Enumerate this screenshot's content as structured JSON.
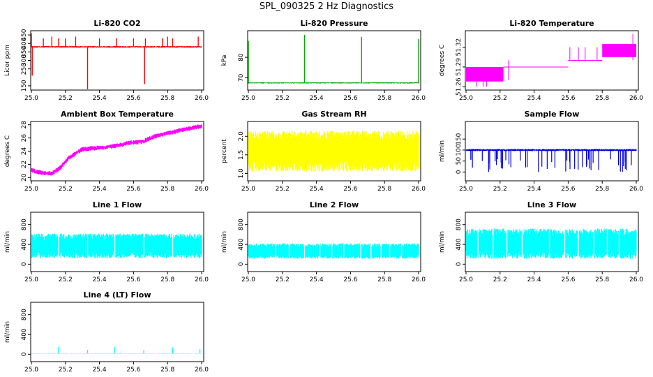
{
  "title": "SPL_090325  2 Hz Diagnostics",
  "chart_data": [
    {
      "type": "line",
      "title": "Li-820 CO2",
      "ylabel": "Licor ppm",
      "series_color": "#ff0000",
      "xlim": [
        25.0,
        26.0
      ],
      "ylim": [
        125,
        475
      ],
      "xticks": [
        25.0,
        25.2,
        25.4,
        25.6,
        25.8,
        26.0
      ],
      "yticks": [
        150,
        250,
        300,
        350,
        400,
        450
      ],
      "base": 380,
      "noise": 5,
      "spikes": [
        [
          25.0,
          460
        ],
        [
          25.005,
          210
        ],
        [
          25.07,
          430
        ],
        [
          25.12,
          440
        ],
        [
          25.16,
          430
        ],
        [
          25.2,
          430
        ],
        [
          25.26,
          440
        ],
        [
          25.33,
          130
        ],
        [
          25.4,
          430
        ],
        [
          25.5,
          430
        ],
        [
          25.6,
          430
        ],
        [
          25.665,
          160
        ],
        [
          25.67,
          430
        ],
        [
          25.77,
          430
        ],
        [
          25.8,
          440
        ],
        [
          25.83,
          430
        ],
        [
          25.98,
          440
        ]
      ]
    },
    {
      "type": "line",
      "title": "Li-820 Pressure",
      "ylabel": "kPa",
      "series_color": "#00aa00",
      "xlim": [
        25.0,
        26.0
      ],
      "ylim": [
        64,
        93
      ],
      "xticks": [
        25.0,
        25.2,
        25.4,
        25.6,
        25.8,
        26.0
      ],
      "yticks": [
        70,
        80
      ],
      "base": 67.5,
      "noise": 0.3,
      "spikes": [
        [
          25.0,
          88
        ],
        [
          25.33,
          91
        ],
        [
          25.665,
          90
        ],
        [
          26.0,
          89
        ]
      ]
    },
    {
      "type": "line",
      "title": "Li-820 Temperature",
      "ylabel": "degrees C",
      "series_color": "#ff00ff",
      "xlim": [
        25.0,
        26.0
      ],
      "ylim": [
        51.255,
        51.345
      ],
      "xticks": [
        25.0,
        25.2,
        25.4,
        25.6,
        25.8,
        26.0
      ],
      "yticks": [
        51.26,
        51.29,
        51.32
      ],
      "base": 51.29,
      "noise": 0.0,
      "segments": [
        [
          25.0,
          25.22,
          51.268,
          51.29,
          true
        ],
        [
          25.22,
          25.6,
          51.29,
          51.29,
          false
        ],
        [
          25.6,
          25.8,
          51.3,
          51.3,
          false
        ],
        [
          25.8,
          26.0,
          51.305,
          51.325,
          true
        ]
      ],
      "spikes": [
        [
          25.06,
          51.26
        ],
        [
          25.1,
          51.26
        ],
        [
          25.12,
          51.26
        ],
        [
          25.25,
          51.27
        ],
        [
          25.61,
          51.32
        ],
        [
          25.66,
          51.32
        ],
        [
          25.7,
          51.32
        ],
        [
          25.77,
          51.32
        ],
        [
          25.98,
          51.34
        ]
      ]
    },
    {
      "type": "line",
      "title": "Ambient Box Temperature",
      "ylabel": "degrees C",
      "series_color": "#ff00ff",
      "xlim": [
        25.0,
        26.0
      ],
      "ylim": [
        19.5,
        28.5
      ],
      "xticks": [
        25.0,
        25.2,
        25.4,
        25.6,
        25.8,
        26.0
      ],
      "yticks": [
        20,
        22,
        24,
        26,
        28
      ],
      "curve": [
        [
          25.0,
          21.1
        ],
        [
          25.05,
          20.8
        ],
        [
          25.12,
          20.6
        ],
        [
          25.17,
          21.5
        ],
        [
          25.22,
          23.0
        ],
        [
          25.3,
          24.3
        ],
        [
          25.4,
          24.5
        ],
        [
          25.5,
          24.8
        ],
        [
          25.58,
          25.3
        ],
        [
          25.65,
          25.4
        ],
        [
          25.72,
          26.2
        ],
        [
          25.8,
          26.7
        ],
        [
          25.9,
          27.3
        ],
        [
          26.0,
          27.8
        ]
      ],
      "noise": 0.35
    },
    {
      "type": "line",
      "title": "Gas Stream RH",
      "ylabel": "percent",
      "series_color": "#ffff00",
      "xlim": [
        25.0,
        26.0
      ],
      "ylim": [
        0.8,
        2.4
      ],
      "xticks": [
        25.0,
        25.2,
        25.4,
        25.6,
        25.8,
        26.0
      ],
      "yticks": [
        1.0,
        1.5,
        2.0
      ],
      "band": [
        1.05,
        2.15
      ]
    },
    {
      "type": "line",
      "title": "Sample Flow",
      "ylabel": "ml/min",
      "series_color": "#0000dd",
      "xlim": [
        25.0,
        26.0
      ],
      "ylim": [
        -40,
        230
      ],
      "xticks": [
        25.0,
        25.2,
        25.4,
        25.6,
        25.8,
        26.0
      ],
      "yticks": [
        0,
        50,
        100,
        150
      ],
      "base": 100,
      "noise": 5,
      "dropcount": 48,
      "droplow": 0
    },
    {
      "type": "line",
      "title": "Line 1 Flow",
      "ylabel": "ml/min",
      "series_color": "#00ffff",
      "xlim": [
        25.0,
        26.0
      ],
      "ylim": [
        -150,
        1050
      ],
      "xticks": [
        25.0,
        25.2,
        25.4,
        25.6,
        25.8,
        26.0
      ],
      "yticks": [
        0,
        400,
        800
      ],
      "band": [
        120,
        620
      ],
      "gaps": [
        25.16,
        25.33,
        25.49,
        25.66,
        25.83
      ]
    },
    {
      "type": "line",
      "title": "Line 2 Flow",
      "ylabel": "ml/min",
      "series_color": "#00ffff",
      "xlim": [
        25.0,
        26.0
      ],
      "ylim": [
        -150,
        1050
      ],
      "xticks": [
        25.0,
        25.2,
        25.4,
        25.6,
        25.8,
        26.0
      ],
      "yticks": [
        0,
        400,
        800
      ],
      "band": [
        110,
        420
      ],
      "gaps": [
        25.16,
        25.24,
        25.33,
        25.42,
        25.49,
        25.56,
        25.66,
        25.72,
        25.78,
        25.83,
        25.9
      ]
    },
    {
      "type": "line",
      "title": "Line 3 Flow",
      "ylabel": "ml/min",
      "series_color": "#00ffff",
      "xlim": [
        25.0,
        26.0
      ],
      "ylim": [
        -150,
        1050
      ],
      "xticks": [
        25.0,
        25.2,
        25.4,
        25.6,
        25.8,
        26.0
      ],
      "yticks": [
        0,
        400,
        800
      ],
      "band": [
        110,
        720
      ],
      "gaps": [
        25.07,
        25.16,
        25.24,
        25.33,
        25.49,
        25.58,
        25.66,
        25.75,
        25.83,
        25.9
      ]
    },
    {
      "type": "line",
      "title": "Line 4 (LT) Flow",
      "ylabel": "ml/min",
      "series_color": "#00ffff",
      "xlim": [
        25.0,
        26.0
      ],
      "ylim": [
        -150,
        1050
      ],
      "xticks": [
        25.0,
        25.2,
        25.4,
        25.6,
        25.8,
        26.0
      ],
      "yticks": [
        0,
        400,
        800
      ],
      "base": 15,
      "noise": 3,
      "spikes": [
        [
          25.16,
          150
        ],
        [
          25.33,
          90
        ],
        [
          25.49,
          150
        ],
        [
          25.66,
          80
        ],
        [
          25.83,
          140
        ],
        [
          25.99,
          100
        ]
      ]
    }
  ]
}
